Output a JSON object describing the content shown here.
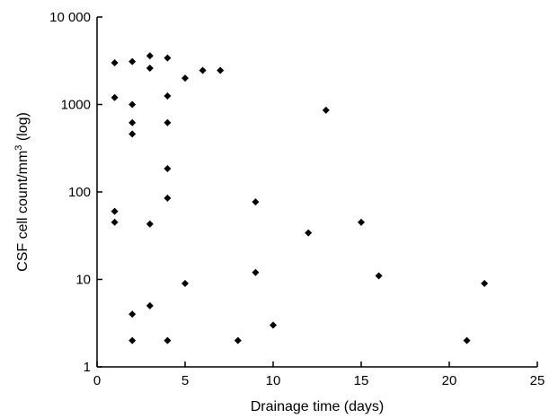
{
  "chart_data": {
    "type": "scatter",
    "xlabel": "Drainage time (days)",
    "ylabel": "CSF cell count/mm",
    "ylabel_superscript": "3",
    "ylabel_suffix": " (log)",
    "xlim": [
      0,
      25
    ],
    "ylim": [
      1,
      10000
    ],
    "yscale": "log",
    "grid": false,
    "x_ticks": [
      0,
      5,
      10,
      15,
      20,
      25
    ],
    "x_tick_labels": [
      "0",
      "5",
      "10",
      "15",
      "20",
      "25"
    ],
    "y_ticks": [
      1,
      10,
      100,
      1000,
      10000
    ],
    "y_tick_labels": [
      "1",
      "10",
      "100",
      "1000",
      "10 000"
    ],
    "marker": "diamond",
    "marker_color": "#000000",
    "points": [
      {
        "x": 1,
        "y": 3000
      },
      {
        "x": 1,
        "y": 1200
      },
      {
        "x": 1,
        "y": 60
      },
      {
        "x": 1,
        "y": 45
      },
      {
        "x": 2,
        "y": 3100
      },
      {
        "x": 2,
        "y": 1000
      },
      {
        "x": 2,
        "y": 620
      },
      {
        "x": 2,
        "y": 460
      },
      {
        "x": 2,
        "y": 4
      },
      {
        "x": 2,
        "y": 2
      },
      {
        "x": 3,
        "y": 3600
      },
      {
        "x": 3,
        "y": 2600
      },
      {
        "x": 3,
        "y": 43
      },
      {
        "x": 3,
        "y": 5
      },
      {
        "x": 4,
        "y": 3400
      },
      {
        "x": 4,
        "y": 1250
      },
      {
        "x": 4,
        "y": 620
      },
      {
        "x": 4,
        "y": 185
      },
      {
        "x": 4,
        "y": 85
      },
      {
        "x": 4,
        "y": 2
      },
      {
        "x": 5,
        "y": 2000
      },
      {
        "x": 5,
        "y": 9
      },
      {
        "x": 6,
        "y": 2450
      },
      {
        "x": 7,
        "y": 2450
      },
      {
        "x": 8,
        "y": 2
      },
      {
        "x": 9,
        "y": 77
      },
      {
        "x": 9,
        "y": 12
      },
      {
        "x": 10,
        "y": 3
      },
      {
        "x": 12,
        "y": 34
      },
      {
        "x": 13,
        "y": 860
      },
      {
        "x": 15,
        "y": 45
      },
      {
        "x": 16,
        "y": 11
      },
      {
        "x": 21,
        "y": 2
      },
      {
        "x": 22,
        "y": 9
      }
    ]
  }
}
